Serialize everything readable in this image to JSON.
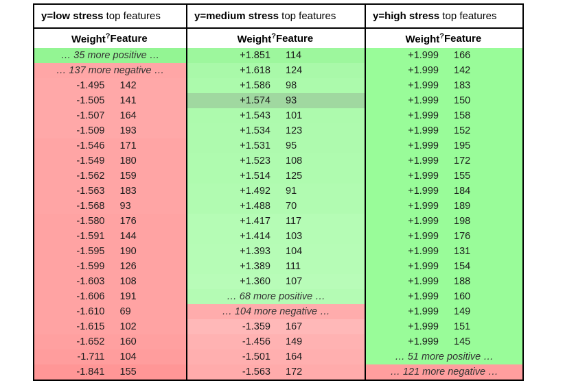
{
  "meta": {
    "border_color": "#000000",
    "positive_color": "#99fc99",
    "negative_color": "#ffa3a3",
    "highlight_color": "#a0d8a0",
    "background": "#ffffff"
  },
  "chart_data": [
    {
      "type": "table",
      "title": "y=low stress top features",
      "title_bold": "y=low stress",
      "title_suffix": " top features",
      "weight_header": "Weight",
      "weight_help": "?",
      "feature_header": "Feature",
      "rows": [
        {
          "type": "more",
          "text": "… 35 more positive …",
          "bg": "#93f593"
        },
        {
          "type": "more",
          "text": "… 137 more negative …",
          "bg": "#ffa6a6"
        },
        {
          "type": "data",
          "weight": "-1.495",
          "feature": "142",
          "bg": "#ffa8a8"
        },
        {
          "type": "data",
          "weight": "-1.505",
          "feature": "141",
          "bg": "#ffa8a8"
        },
        {
          "type": "data",
          "weight": "-1.507",
          "feature": "164",
          "bg": "#ffa8a8"
        },
        {
          "type": "data",
          "weight": "-1.509",
          "feature": "193",
          "bg": "#ffa8a8"
        },
        {
          "type": "data",
          "weight": "-1.546",
          "feature": "171",
          "bg": "#ffa5a5"
        },
        {
          "type": "data",
          "weight": "-1.549",
          "feature": "180",
          "bg": "#ffa5a5"
        },
        {
          "type": "data",
          "weight": "-1.562",
          "feature": "159",
          "bg": "#ffa5a5"
        },
        {
          "type": "data",
          "weight": "-1.563",
          "feature": "183",
          "bg": "#ffa5a5"
        },
        {
          "type": "data",
          "weight": "-1.568",
          "feature": "93",
          "bg": "#ffa5a5"
        },
        {
          "type": "data",
          "weight": "-1.580",
          "feature": "176",
          "bg": "#ffa3a3"
        },
        {
          "type": "data",
          "weight": "-1.591",
          "feature": "144",
          "bg": "#ffa3a3"
        },
        {
          "type": "data",
          "weight": "-1.595",
          "feature": "190",
          "bg": "#ffa3a3"
        },
        {
          "type": "data",
          "weight": "-1.599",
          "feature": "126",
          "bg": "#ffa3a3"
        },
        {
          "type": "data",
          "weight": "-1.603",
          "feature": "108",
          "bg": "#ffa3a3"
        },
        {
          "type": "data",
          "weight": "-1.606",
          "feature": "191",
          "bg": "#ffa3a3"
        },
        {
          "type": "data",
          "weight": "-1.610",
          "feature": "69",
          "bg": "#ffa3a3"
        },
        {
          "type": "data",
          "weight": "-1.615",
          "feature": "102",
          "bg": "#ffa3a3"
        },
        {
          "type": "data",
          "weight": "-1.652",
          "feature": "160",
          "bg": "#ffa0a0"
        },
        {
          "type": "data",
          "weight": "-1.711",
          "feature": "104",
          "bg": "#ff9d9d"
        },
        {
          "type": "data",
          "weight": "-1.841",
          "feature": "155",
          "bg": "#ff9696"
        }
      ]
    },
    {
      "type": "table",
      "title": "y=medium stress top features",
      "title_bold": "y=medium stress",
      "title_suffix": " top features",
      "weight_header": "Weight",
      "weight_help": "?",
      "feature_header": "Feature",
      "rows": [
        {
          "type": "data",
          "weight": "+1.851",
          "feature": "114",
          "bg": "#9df79d"
        },
        {
          "type": "data",
          "weight": "+1.618",
          "feature": "124",
          "bg": "#a9f9a9"
        },
        {
          "type": "data",
          "weight": "+1.586",
          "feature": "98",
          "bg": "#acfaac"
        },
        {
          "type": "data",
          "weight": "+1.574",
          "feature": "93",
          "bg": "#a0d8a0",
          "highlight": true
        },
        {
          "type": "data",
          "weight": "+1.543",
          "feature": "101",
          "bg": "#adfaad"
        },
        {
          "type": "data",
          "weight": "+1.534",
          "feature": "123",
          "bg": "#aefaae"
        },
        {
          "type": "data",
          "weight": "+1.531",
          "feature": "95",
          "bg": "#aefaae"
        },
        {
          "type": "data",
          "weight": "+1.523",
          "feature": "108",
          "bg": "#affbaf"
        },
        {
          "type": "data",
          "weight": "+1.514",
          "feature": "125",
          "bg": "#affbaf"
        },
        {
          "type": "data",
          "weight": "+1.492",
          "feature": "91",
          "bg": "#b1fbb1"
        },
        {
          "type": "data",
          "weight": "+1.488",
          "feature": "70",
          "bg": "#b1fbb1"
        },
        {
          "type": "data",
          "weight": "+1.417",
          "feature": "117",
          "bg": "#b5fcb5"
        },
        {
          "type": "data",
          "weight": "+1.414",
          "feature": "103",
          "bg": "#b5fcb5"
        },
        {
          "type": "data",
          "weight": "+1.393",
          "feature": "104",
          "bg": "#b6fcb6"
        },
        {
          "type": "data",
          "weight": "+1.389",
          "feature": "111",
          "bg": "#b6fcb6"
        },
        {
          "type": "data",
          "weight": "+1.360",
          "feature": "107",
          "bg": "#b8fcb8"
        },
        {
          "type": "more",
          "text": "… 68 more positive …",
          "bg": "#b4fbb4"
        },
        {
          "type": "more",
          "text": "… 104 more negative …",
          "bg": "#ffacac"
        },
        {
          "type": "data",
          "weight": "-1.359",
          "feature": "167",
          "bg": "#ffb8b8"
        },
        {
          "type": "data",
          "weight": "-1.456",
          "feature": "149",
          "bg": "#ffb2b2"
        },
        {
          "type": "data",
          "weight": "-1.501",
          "feature": "164",
          "bg": "#ffafaf"
        },
        {
          "type": "data",
          "weight": "-1.563",
          "feature": "172",
          "bg": "#ffabab"
        }
      ]
    },
    {
      "type": "table",
      "title": "y=high stress top features",
      "title_bold": "y=high stress",
      "title_suffix": " top features",
      "weight_header": "Weight",
      "weight_help": "?",
      "feature_header": "Feature",
      "rows": [
        {
          "type": "data",
          "weight": "+1.999",
          "feature": "166",
          "bg": "#99fc99"
        },
        {
          "type": "data",
          "weight": "+1.999",
          "feature": "142",
          "bg": "#99fc99"
        },
        {
          "type": "data",
          "weight": "+1.999",
          "feature": "183",
          "bg": "#99fc99"
        },
        {
          "type": "data",
          "weight": "+1.999",
          "feature": "150",
          "bg": "#99fc99"
        },
        {
          "type": "data",
          "weight": "+1.999",
          "feature": "158",
          "bg": "#99fc99"
        },
        {
          "type": "data",
          "weight": "+1.999",
          "feature": "152",
          "bg": "#99fc99"
        },
        {
          "type": "data",
          "weight": "+1.999",
          "feature": "195",
          "bg": "#99fc99"
        },
        {
          "type": "data",
          "weight": "+1.999",
          "feature": "172",
          "bg": "#99fc99"
        },
        {
          "type": "data",
          "weight": "+1.999",
          "feature": "155",
          "bg": "#99fc99"
        },
        {
          "type": "data",
          "weight": "+1.999",
          "feature": "184",
          "bg": "#99fc99"
        },
        {
          "type": "data",
          "weight": "+1.999",
          "feature": "189",
          "bg": "#99fc99"
        },
        {
          "type": "data",
          "weight": "+1.999",
          "feature": "198",
          "bg": "#99fc99"
        },
        {
          "type": "data",
          "weight": "+1.999",
          "feature": "176",
          "bg": "#99fc99"
        },
        {
          "type": "data",
          "weight": "+1.999",
          "feature": "131",
          "bg": "#99fc99"
        },
        {
          "type": "data",
          "weight": "+1.999",
          "feature": "154",
          "bg": "#99fc99"
        },
        {
          "type": "data",
          "weight": "+1.999",
          "feature": "188",
          "bg": "#99fc99"
        },
        {
          "type": "data",
          "weight": "+1.999",
          "feature": "160",
          "bg": "#99fc99"
        },
        {
          "type": "data",
          "weight": "+1.999",
          "feature": "149",
          "bg": "#99fc99"
        },
        {
          "type": "data",
          "weight": "+1.999",
          "feature": "151",
          "bg": "#99fc99"
        },
        {
          "type": "data",
          "weight": "+1.999",
          "feature": "145",
          "bg": "#99fc99"
        },
        {
          "type": "more",
          "text": "… 51 more positive …",
          "bg": "#99fc99"
        },
        {
          "type": "more",
          "text": "… 121 more negative …",
          "bg": "#ff9e9e"
        }
      ]
    }
  ]
}
